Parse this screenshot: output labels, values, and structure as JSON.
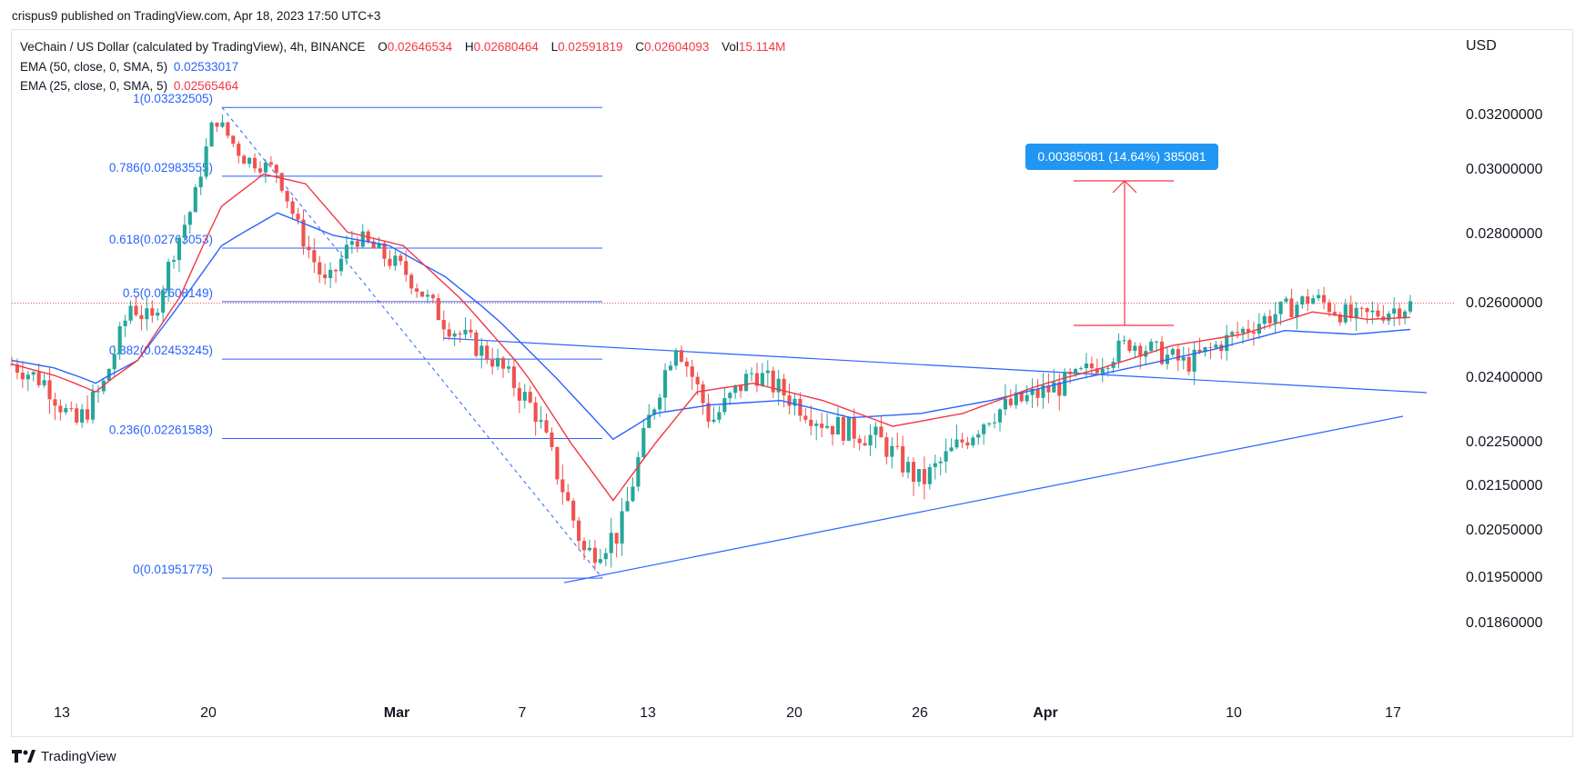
{
  "header": {
    "publisher": "crispus9 published on TradingView.com, Apr 18, 2023 17:50 UTC+3"
  },
  "legend": {
    "title": "VeChain / US Dollar (calculated by TradingView), 4h, BINANCE",
    "o_label": "O",
    "o_value": "0.02646534",
    "h_label": "H",
    "h_value": "0.02680464",
    "l_label": "L",
    "l_value": "0.02591819",
    "c_label": "C",
    "c_value": "0.02604093",
    "vol_label": "Vol",
    "vol_value": "15.114M",
    "ema1_label": "EMA (50, close, 0, SMA, 5)",
    "ema1_value": "0.02533017",
    "ema2_label": "EMA (25, close, 0, SMA, 5)",
    "ema2_value": "0.02565464"
  },
  "axis": {
    "currency": "USD"
  },
  "footer": {
    "brand": "TradingView"
  },
  "colors": {
    "up": "#26a69a",
    "down": "#ef5350",
    "ema50": "#2962ff",
    "ema25": "#f23645",
    "fib": "#2962ff",
    "measure": "#2196f3",
    "measure_arrow": "#f23645"
  },
  "annotations": {
    "measure_label": "0.00385081 (14.64%) 385081",
    "fib_levels": [
      {
        "ratio": "1",
        "value": 0.03232505,
        "label": "1(0.03232505)"
      },
      {
        "ratio": "0.786",
        "value": 0.02983555,
        "label": "0.786(0.02983555)"
      },
      {
        "ratio": "0.618",
        "value": 0.02763053,
        "label": "0.618(0.02763053)"
      },
      {
        "ratio": "0.5",
        "value": 0.02608149,
        "label": "0.5(0.02608149)"
      },
      {
        "ratio": "0.382",
        "value": 0.02453245,
        "label": "0.382(0.02453245)"
      },
      {
        "ratio": "0.236",
        "value": 0.02261583,
        "label": "0.236(0.02261583)"
      },
      {
        "ratio": "0",
        "value": 0.01951775,
        "label": "0(0.01951775)"
      }
    ]
  },
  "chart_data": {
    "type": "candlestick",
    "symbol": "VeChain / US Dollar",
    "interval": "4h",
    "y_ticks": [
      {
        "value": 0.032,
        "label": "0.03200000"
      },
      {
        "value": 0.03,
        "label": "0.03000000"
      },
      {
        "value": 0.028,
        "label": "0.02800000"
      },
      {
        "value": 0.026,
        "label": "0.02600000"
      },
      {
        "value": 0.024,
        "label": "0.02400000"
      },
      {
        "value": 0.0225,
        "label": "0.02250000"
      },
      {
        "value": 0.0215,
        "label": "0.02150000"
      },
      {
        "value": 0.0205,
        "label": "0.02050000"
      },
      {
        "value": 0.0195,
        "label": "0.01950000"
      },
      {
        "value": 0.0186,
        "label": "0.01860000"
      }
    ],
    "x_ticks": [
      {
        "label": "13",
        "bold": false
      },
      {
        "label": "20",
        "bold": false
      },
      {
        "label": "Mar",
        "bold": true
      },
      {
        "label": "7",
        "bold": false
      },
      {
        "label": "13",
        "bold": false
      },
      {
        "label": "20",
        "bold": false
      },
      {
        "label": "26",
        "bold": false
      },
      {
        "label": "Apr",
        "bold": true
      },
      {
        "label": "10",
        "bold": false
      },
      {
        "label": "17",
        "bold": false
      }
    ],
    "last_close": 0.02604093,
    "price_path": [
      [
        0,
        0.0244
      ],
      [
        0.025,
        0.0239
      ],
      [
        0.045,
        0.0229
      ],
      [
        0.065,
        0.0238
      ],
      [
        0.085,
        0.026
      ],
      [
        0.1,
        0.0255
      ],
      [
        0.115,
        0.0275
      ],
      [
        0.13,
        0.029
      ],
      [
        0.145,
        0.032
      ],
      [
        0.165,
        0.0305
      ],
      [
        0.19,
        0.03
      ],
      [
        0.205,
        0.0282
      ],
      [
        0.225,
        0.0265
      ],
      [
        0.245,
        0.028
      ],
      [
        0.28,
        0.027
      ],
      [
        0.31,
        0.0255
      ],
      [
        0.345,
        0.0245
      ],
      [
        0.375,
        0.0232
      ],
      [
        0.41,
        0.02
      ],
      [
        0.435,
        0.0205
      ],
      [
        0.455,
        0.023
      ],
      [
        0.475,
        0.025
      ],
      [
        0.5,
        0.023
      ],
      [
        0.53,
        0.0242
      ],
      [
        0.58,
        0.023
      ],
      [
        0.62,
        0.0226
      ],
      [
        0.65,
        0.0216
      ],
      [
        0.7,
        0.0232
      ],
      [
        0.76,
        0.024
      ],
      [
        0.8,
        0.025
      ],
      [
        0.84,
        0.0244
      ],
      [
        0.875,
        0.0252
      ],
      [
        0.9,
        0.0257
      ],
      [
        0.93,
        0.0262
      ],
      [
        0.96,
        0.0256
      ],
      [
        1.0,
        0.026
      ]
    ],
    "ema25": [
      [
        0,
        0.0244
      ],
      [
        0.03,
        0.0241
      ],
      [
        0.06,
        0.0237
      ],
      [
        0.09,
        0.0245
      ],
      [
        0.12,
        0.0262
      ],
      [
        0.15,
        0.0289
      ],
      [
        0.18,
        0.0299
      ],
      [
        0.21,
        0.0296
      ],
      [
        0.24,
        0.0281
      ],
      [
        0.28,
        0.0277
      ],
      [
        0.32,
        0.0262
      ],
      [
        0.36,
        0.0245
      ],
      [
        0.4,
        0.0225
      ],
      [
        0.43,
        0.0212
      ],
      [
        0.46,
        0.0225
      ],
      [
        0.49,
        0.0237
      ],
      [
        0.53,
        0.0239
      ],
      [
        0.58,
        0.0235
      ],
      [
        0.63,
        0.0229
      ],
      [
        0.68,
        0.0232
      ],
      [
        0.73,
        0.0238
      ],
      [
        0.78,
        0.0243
      ],
      [
        0.83,
        0.0249
      ],
      [
        0.88,
        0.0252
      ],
      [
        0.93,
        0.0258
      ],
      [
        0.97,
        0.0256
      ],
      [
        1.0,
        0.02565464
      ]
    ],
    "ema50": [
      [
        0,
        0.0245
      ],
      [
        0.03,
        0.0243
      ],
      [
        0.06,
        0.0239
      ],
      [
        0.09,
        0.0245
      ],
      [
        0.12,
        0.026
      ],
      [
        0.15,
        0.0277
      ],
      [
        0.19,
        0.0287
      ],
      [
        0.23,
        0.028
      ],
      [
        0.27,
        0.0277
      ],
      [
        0.31,
        0.0268
      ],
      [
        0.35,
        0.0255
      ],
      [
        0.39,
        0.024
      ],
      [
        0.43,
        0.0226
      ],
      [
        0.46,
        0.0232
      ],
      [
        0.5,
        0.0234
      ],
      [
        0.55,
        0.0235
      ],
      [
        0.6,
        0.0231
      ],
      [
        0.65,
        0.0232
      ],
      [
        0.7,
        0.0235
      ],
      [
        0.75,
        0.0239
      ],
      [
        0.8,
        0.0243
      ],
      [
        0.86,
        0.0248
      ],
      [
        0.91,
        0.0253
      ],
      [
        0.96,
        0.0252
      ],
      [
        1.0,
        0.02533017
      ]
    ],
    "candle_count": 260,
    "grid": false
  }
}
